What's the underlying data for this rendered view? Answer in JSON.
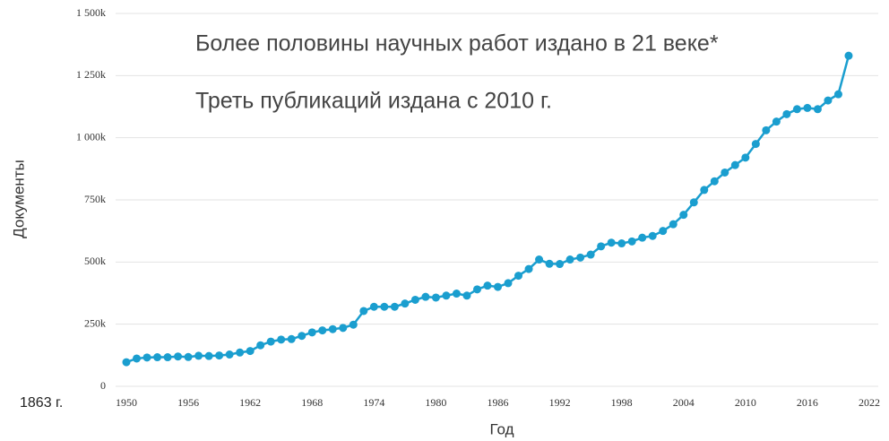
{
  "chart_data": {
    "type": "line",
    "annotations": [
      "Более половины научных работ издано в 21 веке*",
      "Треть публикаций издана с 2010 г.",
      "1863 г."
    ],
    "xlabel": "Год",
    "ylabel": "Документы",
    "x": [
      1950,
      1951,
      1952,
      1953,
      1954,
      1955,
      1956,
      1957,
      1958,
      1959,
      1960,
      1961,
      1962,
      1963,
      1964,
      1965,
      1966,
      1967,
      1968,
      1969,
      1970,
      1971,
      1972,
      1973,
      1974,
      1975,
      1976,
      1977,
      1978,
      1979,
      1980,
      1981,
      1982,
      1983,
      1984,
      1985,
      1986,
      1987,
      1988,
      1989,
      1990,
      1991,
      1992,
      1993,
      1994,
      1995,
      1996,
      1997,
      1998,
      1999,
      2000,
      2001,
      2002,
      2003,
      2004,
      2005,
      2006,
      2007,
      2008,
      2009,
      2010,
      2011,
      2012,
      2013,
      2014,
      2015,
      2016,
      2017,
      2018,
      2019,
      2020
    ],
    "series": [
      {
        "name": "Документы",
        "color": "#1a9ecf",
        "values": [
          97000,
          112000,
          116000,
          117000,
          117000,
          120000,
          118000,
          123000,
          122000,
          124000,
          128000,
          136000,
          142000,
          165000,
          180000,
          188000,
          190000,
          203000,
          217000,
          225000,
          230000,
          235000,
          248000,
          303000,
          320000,
          320000,
          320000,
          333000,
          348000,
          360000,
          357000,
          365000,
          373000,
          365000,
          390000,
          405000,
          400000,
          415000,
          445000,
          472000,
          510000,
          493000,
          492000,
          510000,
          518000,
          530000,
          563000,
          578000,
          575000,
          583000,
          598000,
          605000,
          625000,
          652000,
          690000,
          740000,
          790000,
          825000,
          860000,
          890000,
          920000,
          975000,
          1030000,
          1065000,
          1095000,
          1115000,
          1120000,
          1115000,
          1150000,
          1175000,
          1330000
        ]
      }
    ],
    "xlim": [
      1950,
      2022
    ],
    "xticks": [
      1950,
      1956,
      1962,
      1968,
      1974,
      1980,
      1986,
      1992,
      1998,
      2004,
      2010,
      2016,
      2022
    ],
    "ylim": [
      0,
      1500000
    ],
    "yticks": [
      0,
      {
        "value": 250000,
        "label": "250k"
      },
      {
        "value": 500000,
        "label": "500k"
      },
      {
        "value": 750000,
        "label": "750k"
      },
      {
        "value": 1000000,
        "label": "1 000k"
      },
      {
        "value": 1250000,
        "label": "1 250k"
      },
      {
        "value": 1500000,
        "label": "1 500k"
      }
    ],
    "grid": true
  }
}
